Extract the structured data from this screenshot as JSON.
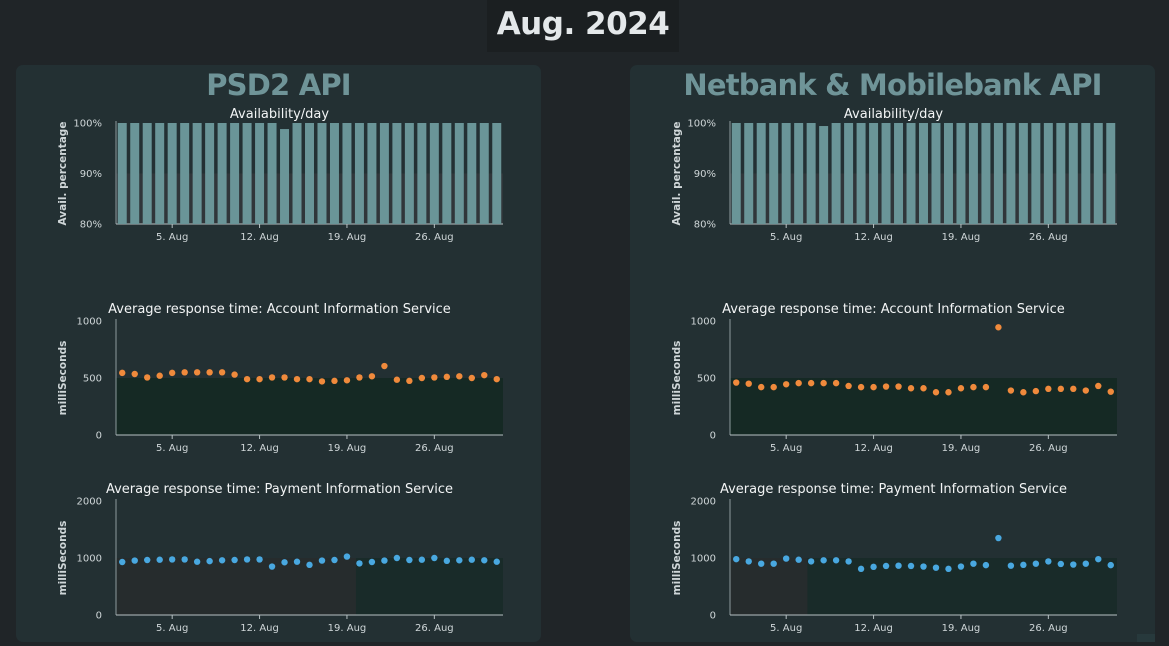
{
  "page": {
    "title": "Aug. 2024"
  },
  "colors": {
    "availability_bar": "#6a9598",
    "ais_point": "#f08a3c",
    "pis_point": "#49a8e0",
    "panel_bg": "#233033",
    "page_bg": "#202528"
  },
  "panels": [
    {
      "title": "PSD2 API",
      "charts": [
        {
          "type": "bar",
          "title": "Availability/day",
          "ylabel": "Avail. percentage",
          "ylim": [
            80,
            100
          ],
          "yticks": [
            "80%",
            "90%",
            "100%"
          ],
          "xticks": [
            {
              "day": 5,
              "label": "5. Aug"
            },
            {
              "day": 12,
              "label": "12. Aug"
            },
            {
              "day": 19,
              "label": "19. Aug"
            },
            {
              "day": 26,
              "label": "26. Aug"
            }
          ],
          "days": [
            1,
            2,
            3,
            4,
            5,
            6,
            7,
            8,
            9,
            10,
            11,
            12,
            13,
            14,
            15,
            16,
            17,
            18,
            19,
            20,
            21,
            22,
            23,
            24,
            25,
            26,
            27,
            28,
            29,
            30,
            31
          ],
          "values": [
            100,
            100,
            100,
            100,
            100,
            100,
            100,
            100,
            100,
            100,
            100,
            100,
            100,
            98.8,
            100,
            100,
            100,
            100,
            100,
            100,
            100,
            100,
            100,
            100,
            100,
            100,
            100,
            100,
            100,
            100,
            100
          ]
        },
        {
          "type": "scatter",
          "title": "Average response time: Account Information Service",
          "ylabel": "milliSeconds",
          "ylim": [
            0,
            1000
          ],
          "yticks": [
            "0",
            "500",
            "1000"
          ],
          "xticks": [
            {
              "day": 5,
              "label": "5. Aug"
            },
            {
              "day": 12,
              "label": "12. Aug"
            },
            {
              "day": 19,
              "label": "19. Aug"
            },
            {
              "day": 26,
              "label": "26. Aug"
            }
          ],
          "days": [
            1,
            2,
            3,
            4,
            5,
            6,
            7,
            8,
            9,
            10,
            11,
            12,
            13,
            14,
            15,
            16,
            17,
            18,
            19,
            20,
            21,
            22,
            23,
            24,
            25,
            26,
            27,
            28,
            29,
            30,
            31
          ],
          "values": [
            545,
            535,
            505,
            520,
            545,
            550,
            550,
            550,
            550,
            530,
            490,
            490,
            505,
            505,
            490,
            490,
            470,
            475,
            480,
            505,
            515,
            605,
            485,
            475,
            500,
            505,
            510,
            515,
            500,
            525,
            490
          ]
        },
        {
          "type": "scatter",
          "title": "Average response time: Payment Information Service",
          "ylabel": "milliSeconds",
          "ylim": [
            0,
            2000
          ],
          "yticks": [
            "0",
            "1000",
            "2000"
          ],
          "xticks": [
            {
              "day": 5,
              "label": "5. Aug"
            },
            {
              "day": 12,
              "label": "12. Aug"
            },
            {
              "day": 19,
              "label": "19. Aug"
            },
            {
              "day": 26,
              "label": "26. Aug"
            }
          ],
          "days": [
            1,
            2,
            3,
            4,
            5,
            6,
            7,
            8,
            9,
            10,
            11,
            12,
            13,
            14,
            15,
            16,
            17,
            18,
            19,
            20,
            21,
            22,
            23,
            24,
            25,
            26,
            27,
            28,
            29,
            30,
            31
          ],
          "values": [
            930,
            955,
            965,
            970,
            975,
            975,
            935,
            945,
            960,
            965,
            975,
            975,
            850,
            925,
            935,
            880,
            955,
            965,
            1025,
            905,
            930,
            955,
            1000,
            965,
            970,
            1000,
            950,
            960,
            970,
            960,
            935
          ]
        }
      ]
    },
    {
      "title": "Netbank & Mobilebank API",
      "charts": [
        {
          "type": "bar",
          "title": "Availability/day",
          "ylabel": "Avail. percentage",
          "ylim": [
            80,
            100
          ],
          "yticks": [
            "80%",
            "90%",
            "100%"
          ],
          "xticks": [
            {
              "day": 5,
              "label": "5. Aug"
            },
            {
              "day": 12,
              "label": "12. Aug"
            },
            {
              "day": 19,
              "label": "19. Aug"
            },
            {
              "day": 26,
              "label": "26. Aug"
            }
          ],
          "days": [
            1,
            2,
            3,
            4,
            5,
            6,
            7,
            8,
            9,
            10,
            11,
            12,
            13,
            14,
            15,
            16,
            17,
            18,
            19,
            20,
            21,
            22,
            23,
            24,
            25,
            26,
            27,
            28,
            29,
            30,
            31
          ],
          "values": [
            100,
            100,
            100,
            100,
            100,
            100,
            100,
            99.4,
            100,
            100,
            100,
            100,
            100,
            100,
            100,
            100,
            100,
            100,
            100,
            100,
            100,
            100,
            100,
            100,
            100,
            100,
            100,
            100,
            100,
            100,
            100
          ]
        },
        {
          "type": "scatter",
          "title": "Average response time: Account Information Service",
          "ylabel": "milliSeconds",
          "ylim": [
            0,
            1000
          ],
          "yticks": [
            "0",
            "500",
            "1000"
          ],
          "xticks": [
            {
              "day": 5,
              "label": "5. Aug"
            },
            {
              "day": 12,
              "label": "12. Aug"
            },
            {
              "day": 19,
              "label": "19. Aug"
            },
            {
              "day": 26,
              "label": "26. Aug"
            }
          ],
          "days": [
            1,
            2,
            3,
            4,
            5,
            6,
            7,
            8,
            9,
            10,
            11,
            12,
            13,
            14,
            15,
            16,
            17,
            18,
            19,
            20,
            21,
            22,
            23,
            24,
            25,
            26,
            27,
            28,
            29,
            30,
            31
          ],
          "values": [
            460,
            450,
            420,
            420,
            445,
            455,
            455,
            455,
            455,
            430,
            420,
            420,
            425,
            425,
            410,
            410,
            375,
            375,
            410,
            420,
            420,
            945,
            390,
            375,
            385,
            405,
            405,
            405,
            390,
            430,
            380
          ]
        },
        {
          "type": "scatter",
          "title": "Average response time: Payment Information Service",
          "ylabel": "milliSeconds",
          "ylim": [
            0,
            2000
          ],
          "yticks": [
            "0",
            "1000",
            "2000"
          ],
          "xticks": [
            {
              "day": 5,
              "label": "5. Aug"
            },
            {
              "day": 12,
              "label": "12. Aug"
            },
            {
              "day": 19,
              "label": "19. Aug"
            },
            {
              "day": 26,
              "label": "26. Aug"
            }
          ],
          "days": [
            1,
            2,
            3,
            4,
            5,
            6,
            7,
            8,
            9,
            10,
            11,
            12,
            13,
            14,
            15,
            16,
            17,
            18,
            19,
            20,
            21,
            22,
            23,
            24,
            25,
            26,
            27,
            28,
            29,
            30,
            31
          ],
          "values": [
            980,
            940,
            900,
            900,
            990,
            970,
            940,
            960,
            960,
            940,
            810,
            845,
            860,
            865,
            860,
            850,
            830,
            810,
            850,
            900,
            875,
            1350,
            865,
            880,
            900,
            940,
            895,
            885,
            900,
            980,
            875
          ]
        }
      ]
    }
  ],
  "chart_data": [
    {
      "type": "bar",
      "panel": "PSD2 API",
      "title": "Availability/day",
      "ylabel": "Avail. percentage",
      "ylim": [
        80,
        100
      ],
      "categories": [
        "1",
        "2",
        "3",
        "4",
        "5",
        "6",
        "7",
        "8",
        "9",
        "10",
        "11",
        "12",
        "13",
        "14",
        "15",
        "16",
        "17",
        "18",
        "19",
        "20",
        "21",
        "22",
        "23",
        "24",
        "25",
        "26",
        "27",
        "28",
        "29",
        "30",
        "31"
      ],
      "values": [
        100,
        100,
        100,
        100,
        100,
        100,
        100,
        100,
        100,
        100,
        100,
        100,
        100,
        98.8,
        100,
        100,
        100,
        100,
        100,
        100,
        100,
        100,
        100,
        100,
        100,
        100,
        100,
        100,
        100,
        100,
        100
      ]
    },
    {
      "type": "scatter",
      "panel": "PSD2 API",
      "title": "Average response time: Account Information Service",
      "ylabel": "milliSeconds",
      "ylim": [
        0,
        1000
      ],
      "x": [
        1,
        2,
        3,
        4,
        5,
        6,
        7,
        8,
        9,
        10,
        11,
        12,
        13,
        14,
        15,
        16,
        17,
        18,
        19,
        20,
        21,
        22,
        23,
        24,
        25,
        26,
        27,
        28,
        29,
        30,
        31
      ],
      "values": [
        545,
        535,
        505,
        520,
        545,
        550,
        550,
        550,
        550,
        530,
        490,
        490,
        505,
        505,
        490,
        490,
        470,
        475,
        480,
        505,
        515,
        605,
        485,
        475,
        500,
        505,
        510,
        515,
        500,
        525,
        490
      ]
    },
    {
      "type": "scatter",
      "panel": "PSD2 API",
      "title": "Average response time: Payment Information Service",
      "ylabel": "milliSeconds",
      "ylim": [
        0,
        2000
      ],
      "x": [
        1,
        2,
        3,
        4,
        5,
        6,
        7,
        8,
        9,
        10,
        11,
        12,
        13,
        14,
        15,
        16,
        17,
        18,
        19,
        20,
        21,
        22,
        23,
        24,
        25,
        26,
        27,
        28,
        29,
        30,
        31
      ],
      "values": [
        930,
        955,
        965,
        970,
        975,
        975,
        935,
        945,
        960,
        965,
        975,
        975,
        850,
        925,
        935,
        880,
        955,
        965,
        1025,
        905,
        930,
        955,
        1000,
        965,
        970,
        1000,
        950,
        960,
        970,
        960,
        935
      ]
    },
    {
      "type": "bar",
      "panel": "Netbank & Mobilebank API",
      "title": "Availability/day",
      "ylabel": "Avail. percentage",
      "ylim": [
        80,
        100
      ],
      "categories": [
        "1",
        "2",
        "3",
        "4",
        "5",
        "6",
        "7",
        "8",
        "9",
        "10",
        "11",
        "12",
        "13",
        "14",
        "15",
        "16",
        "17",
        "18",
        "19",
        "20",
        "21",
        "22",
        "23",
        "24",
        "25",
        "26",
        "27",
        "28",
        "29",
        "30",
        "31"
      ],
      "values": [
        100,
        100,
        100,
        100,
        100,
        100,
        100,
        99.4,
        100,
        100,
        100,
        100,
        100,
        100,
        100,
        100,
        100,
        100,
        100,
        100,
        100,
        100,
        100,
        100,
        100,
        100,
        100,
        100,
        100,
        100,
        100
      ]
    },
    {
      "type": "scatter",
      "panel": "Netbank & Mobilebank API",
      "title": "Average response time: Account Information Service",
      "ylabel": "milliSeconds",
      "ylim": [
        0,
        1000
      ],
      "x": [
        1,
        2,
        3,
        4,
        5,
        6,
        7,
        8,
        9,
        10,
        11,
        12,
        13,
        14,
        15,
        16,
        17,
        18,
        19,
        20,
        21,
        22,
        23,
        24,
        25,
        26,
        27,
        28,
        29,
        30,
        31
      ],
      "values": [
        460,
        450,
        420,
        420,
        445,
        455,
        455,
        455,
        455,
        430,
        420,
        420,
        425,
        425,
        410,
        410,
        375,
        375,
        410,
        420,
        420,
        945,
        390,
        375,
        385,
        405,
        405,
        405,
        390,
        430,
        380
      ]
    },
    {
      "type": "scatter",
      "panel": "Netbank & Mobilebank API",
      "title": "Average response time: Payment Information Service",
      "ylabel": "milliSeconds",
      "ylim": [
        0,
        2000
      ],
      "x": [
        1,
        2,
        3,
        4,
        5,
        6,
        7,
        8,
        9,
        10,
        11,
        12,
        13,
        14,
        15,
        16,
        17,
        18,
        19,
        20,
        21,
        22,
        23,
        24,
        25,
        26,
        27,
        28,
        29,
        30,
        31
      ],
      "values": [
        980,
        940,
        900,
        900,
        990,
        970,
        940,
        960,
        960,
        940,
        810,
        845,
        860,
        865,
        860,
        850,
        830,
        810,
        850,
        900,
        875,
        1350,
        865,
        880,
        900,
        940,
        895,
        885,
        900,
        980,
        875
      ]
    }
  ]
}
